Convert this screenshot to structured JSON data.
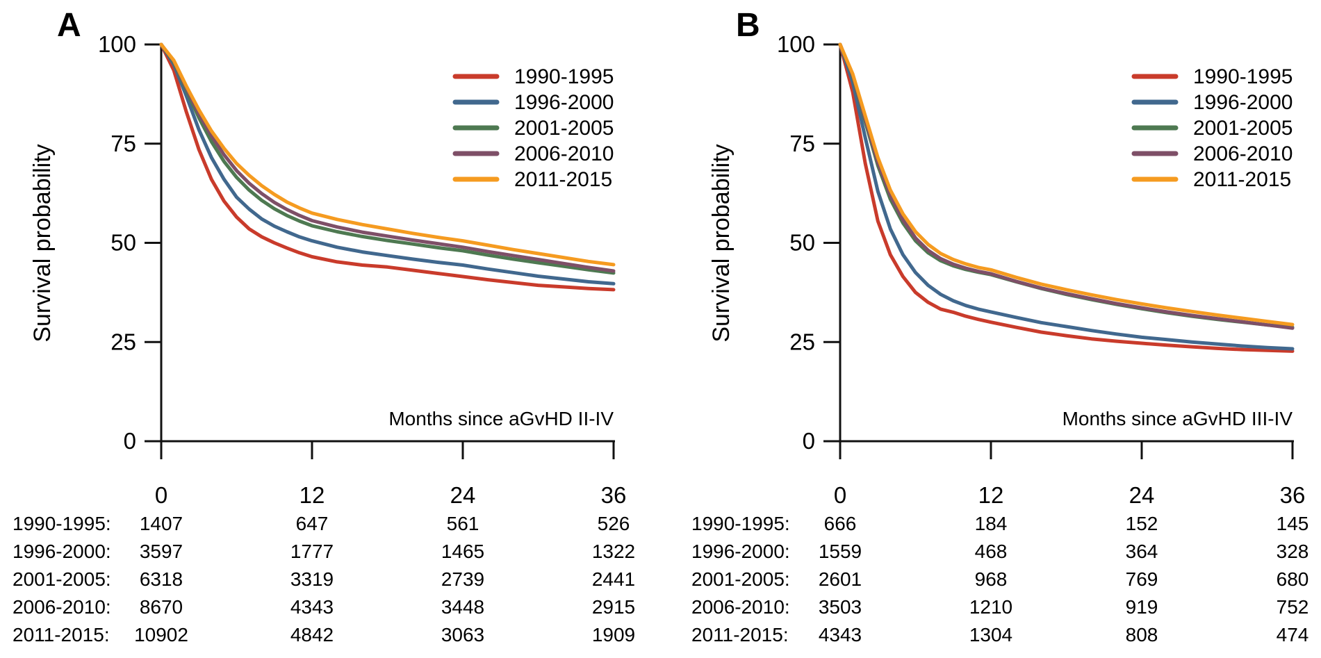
{
  "chart_data": [
    {
      "type": "line",
      "panel_label": "A",
      "panel_label_color": "#4b7086",
      "title": "",
      "ylabel": "Survival probability",
      "xlabel": "Months since aGvHD II-IV",
      "xlim": [
        0,
        36
      ],
      "ylim": [
        0,
        100
      ],
      "grid": false,
      "legend_position": "top-right",
      "x_ticks": [
        "0",
        "12",
        "24",
        "36"
      ],
      "y_ticks": [
        "100",
        "75",
        "50",
        "25",
        "0"
      ],
      "x": [
        0,
        1,
        2,
        3,
        4,
        5,
        6,
        7,
        8,
        9,
        10,
        11,
        12,
        14,
        16,
        18,
        20,
        22,
        24,
        26,
        28,
        30,
        32,
        34,
        36
      ],
      "series": [
        {
          "name": "1990-1995",
          "color": "#c93b2b",
          "y": [
            100,
            93.5,
            83,
            73.5,
            66,
            60.5,
            56.5,
            53.5,
            51.5,
            50,
            48.7,
            47.5,
            46.5,
            45.2,
            44.4,
            43.9,
            43.1,
            42.3,
            41.5,
            40.7,
            40.0,
            39.3,
            38.9,
            38.5,
            38.2
          ]
        },
        {
          "name": "1996-2000",
          "color": "#41688e",
          "y": [
            100,
            95,
            87,
            78.5,
            71.5,
            66,
            61.5,
            58.5,
            56,
            54.2,
            52.8,
            51.5,
            50.5,
            48.9,
            47.7,
            46.8,
            45.9,
            45.1,
            44.4,
            43.4,
            42.5,
            41.6,
            40.9,
            40.2,
            39.7
          ]
        },
        {
          "name": "2001-2005",
          "color": "#4e7951",
          "y": [
            100,
            95.5,
            88.5,
            81.5,
            75.5,
            70.5,
            66.5,
            63.3,
            60.7,
            58.6,
            56.9,
            55.5,
            54.3,
            52.8,
            51.6,
            50.6,
            49.7,
            48.8,
            48.0,
            46.9,
            45.9,
            45.0,
            44.1,
            43.2,
            42.4
          ]
        },
        {
          "name": "2006-2010",
          "color": "#7e4f67",
          "y": [
            100,
            95.8,
            89,
            82.5,
            77,
            72.2,
            68.2,
            65,
            62.4,
            60.2,
            58.4,
            56.9,
            55.6,
            54.0,
            52.7,
            51.7,
            50.7,
            49.8,
            48.9,
            47.8,
            46.8,
            45.8,
            44.8,
            43.8,
            42.9
          ]
        },
        {
          "name": "2011-2015",
          "color": "#f59b20",
          "y": [
            100,
            96,
            89.5,
            83.5,
            78.2,
            73.8,
            70,
            67,
            64.4,
            62.2,
            60.3,
            58.8,
            57.5,
            55.9,
            54.6,
            53.5,
            52.4,
            51.4,
            50.5,
            49.4,
            48.3,
            47.3,
            46.3,
            45.3,
            44.5
          ]
        }
      ],
      "risk_table": {
        "time_points": [
          0,
          12,
          24,
          36
        ],
        "rows": [
          {
            "label": "1990-1995:",
            "values": [
              "1407",
              "647",
              "561",
              "526"
            ]
          },
          {
            "label": "1996-2000:",
            "values": [
              "3597",
              "1777",
              "1465",
              "1322"
            ]
          },
          {
            "label": "2001-2005:",
            "values": [
              "6318",
              "3319",
              "2739",
              "2441"
            ]
          },
          {
            "label": "2006-2010:",
            "values": [
              "8670",
              "4343",
              "3448",
              "2915"
            ]
          },
          {
            "label": "2011-2015:",
            "values": [
              "10902",
              "4842",
              "3063",
              "1909"
            ]
          }
        ]
      }
    },
    {
      "type": "line",
      "panel_label": "B",
      "panel_label_color": "#4b7086",
      "title": "",
      "ylabel": "Survival probability",
      "xlabel": "Months since aGvHD III-IV",
      "xlim": [
        0,
        36
      ],
      "ylim": [
        0,
        100
      ],
      "grid": false,
      "legend_position": "top-right",
      "x_ticks": [
        "0",
        "12",
        "24",
        "36"
      ],
      "y_ticks": [
        "100",
        "75",
        "50",
        "25",
        "0"
      ],
      "x": [
        0,
        1,
        2,
        3,
        4,
        5,
        6,
        7,
        8,
        9,
        10,
        11,
        12,
        14,
        16,
        18,
        20,
        22,
        24,
        26,
        28,
        30,
        32,
        34,
        36
      ],
      "series": [
        {
          "name": "1990-1995",
          "color": "#c93b2b",
          "y": [
            100,
            88,
            70,
            55.5,
            47,
            41.5,
            37.5,
            35,
            33.3,
            32.5,
            31.5,
            30.7,
            30,
            28.7,
            27.5,
            26.6,
            25.8,
            25.2,
            24.7,
            24.2,
            23.8,
            23.4,
            23.1,
            22.9,
            22.7
          ]
        },
        {
          "name": "1996-2000",
          "color": "#41688e",
          "y": [
            100,
            90.5,
            76.5,
            63,
            53.5,
            47,
            42.5,
            39.3,
            37,
            35.4,
            34.2,
            33.3,
            32.6,
            31.2,
            29.9,
            28.9,
            27.9,
            27.0,
            26.2,
            25.6,
            25.0,
            24.5,
            24.0,
            23.6,
            23.3
          ]
        },
        {
          "name": "2001-2005",
          "color": "#4e7951",
          "y": [
            100,
            92,
            80.5,
            69.5,
            61,
            55,
            50.5,
            47.5,
            45.5,
            44.2,
            43.3,
            42.6,
            42.0,
            40.2,
            38.5,
            37.0,
            35.7,
            34.5,
            33.4,
            32.4,
            31.5,
            30.7,
            30.0,
            29.3,
            28.7
          ]
        },
        {
          "name": "2006-2010",
          "color": "#7e4f67",
          "y": [
            100,
            92.3,
            81.2,
            70.3,
            62,
            55.8,
            51.2,
            48.1,
            46,
            44.6,
            43.6,
            42.8,
            42.2,
            40.3,
            38.6,
            37.2,
            35.9,
            34.7,
            33.6,
            32.6,
            31.7,
            30.9,
            30.1,
            29.3,
            28.5
          ]
        },
        {
          "name": "2011-2015",
          "color": "#f59b20",
          "y": [
            100,
            92.6,
            82,
            71.5,
            63.3,
            57.3,
            52.8,
            49.6,
            47.3,
            45.8,
            44.7,
            43.8,
            43.2,
            41.3,
            39.6,
            38.2,
            36.9,
            35.7,
            34.6,
            33.6,
            32.7,
            31.8,
            31.0,
            30.2,
            29.4
          ]
        }
      ],
      "risk_table": {
        "time_points": [
          0,
          12,
          24,
          36
        ],
        "rows": [
          {
            "label": "1990-1995:",
            "values": [
              "666",
              "184",
              "152",
              "145"
            ]
          },
          {
            "label": "1996-2000:",
            "values": [
              "1559",
              "468",
              "364",
              "328"
            ]
          },
          {
            "label": "2001-2005:",
            "values": [
              "2601",
              "968",
              "769",
              "680"
            ]
          },
          {
            "label": "2006-2010:",
            "values": [
              "3503",
              "1210",
              "919",
              "752"
            ]
          },
          {
            "label": "2011-2015:",
            "values": [
              "4343",
              "1304",
              "808",
              "474"
            ]
          }
        ]
      }
    }
  ]
}
